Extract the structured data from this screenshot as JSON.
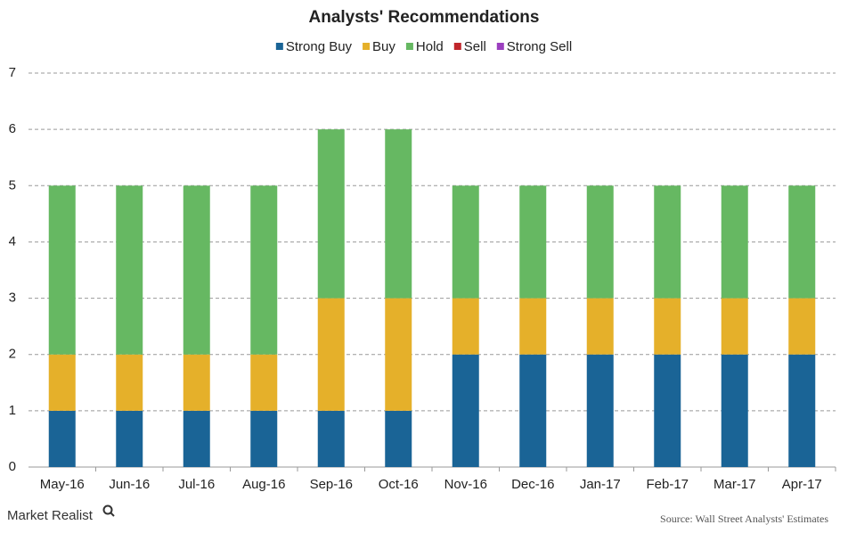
{
  "chart_data": {
    "type": "stacked-bar",
    "title": "Analysts' Recommendations",
    "categories": [
      "May-16",
      "Jun-16",
      "Jul-16",
      "Aug-16",
      "Sep-16",
      "Oct-16",
      "Nov-16",
      "Dec-16",
      "Jan-17",
      "Feb-17",
      "Mar-17",
      "Apr-17"
    ],
    "series": [
      {
        "name": "Strong Buy",
        "color": "#1a6496",
        "values": [
          1,
          1,
          1,
          1,
          1,
          1,
          2,
          2,
          2,
          2,
          2,
          2
        ]
      },
      {
        "name": "Buy",
        "color": "#e5b02a",
        "values": [
          1,
          1,
          1,
          1,
          2,
          2,
          1,
          1,
          1,
          1,
          1,
          1
        ]
      },
      {
        "name": "Hold",
        "color": "#66b862",
        "values": [
          3,
          3,
          3,
          3,
          3,
          3,
          2,
          2,
          2,
          2,
          2,
          2
        ]
      },
      {
        "name": "Sell",
        "color": "#c0262b",
        "values": [
          0,
          0,
          0,
          0,
          0,
          0,
          0,
          0,
          0,
          0,
          0,
          0
        ]
      },
      {
        "name": "Strong Sell",
        "color": "#9b3fbf",
        "values": [
          0,
          0,
          0,
          0,
          0,
          0,
          0,
          0,
          0,
          0,
          0,
          0
        ]
      }
    ],
    "ylim": [
      0,
      7
    ],
    "yticks": [
      0,
      1,
      2,
      3,
      4,
      5,
      6,
      7
    ],
    "grid": true,
    "legend": "top",
    "brand": "Market Realist",
    "source": "Source:  Wall Street Analysts' Estimates"
  }
}
